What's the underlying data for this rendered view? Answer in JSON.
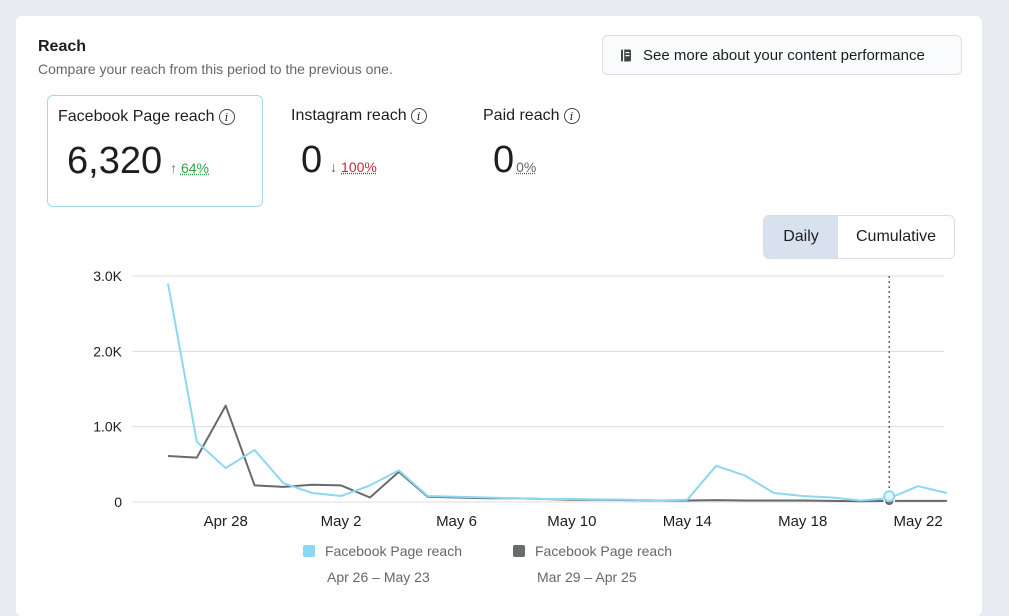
{
  "header": {
    "title": "Reach",
    "subtitle": "Compare your reach from this period to the previous one.",
    "more_button": "See more about your content performance",
    "more_icon": "notebook-icon"
  },
  "metrics": [
    {
      "label": "Facebook Page reach",
      "value": "6,320",
      "arrow": "↑",
      "delta": "64%",
      "direction": "up",
      "selected": true
    },
    {
      "label": "Instagram reach",
      "value": "0",
      "arrow": "↓",
      "delta": "100%",
      "direction": "down",
      "selected": false
    },
    {
      "label": "Paid reach",
      "value": "0",
      "arrow": "",
      "delta": "0%",
      "direction": "flat",
      "selected": false
    }
  ],
  "toggle": {
    "daily": "Daily",
    "cumulative": "Cumulative",
    "active": "Daily"
  },
  "legend": [
    {
      "name": "Facebook Page reach",
      "range": "Apr 26 – May 23",
      "color": "#8dd7f2"
    },
    {
      "name": "Facebook Page reach",
      "range": "Mar 29 – Apr 25",
      "color": "#676b6c"
    }
  ],
  "chart_data": {
    "type": "line",
    "y_ticks": [
      "0",
      "1.0K",
      "2.0K",
      "3.0K"
    ],
    "ylim": [
      0,
      3000
    ],
    "x_tick_labels": [
      "Apr 28",
      "May 2",
      "May 6",
      "May 10",
      "May 14",
      "May 18",
      "May 22"
    ],
    "x_tick_indices": [
      2,
      6,
      10,
      14,
      18,
      22,
      26
    ],
    "x": [
      "Apr 26",
      "Apr 27",
      "Apr 28",
      "Apr 29",
      "Apr 30",
      "May 1",
      "May 2",
      "May 3",
      "May 4",
      "May 5",
      "May 6",
      "May 7",
      "May 8",
      "May 9",
      "May 10",
      "May 11",
      "May 12",
      "May 13",
      "May 14",
      "May 15",
      "May 16",
      "May 17",
      "May 18",
      "May 19",
      "May 20",
      "May 21",
      "May 22",
      "May 23"
    ],
    "grid": true,
    "hover_index": 25,
    "series": [
      {
        "name": "Facebook Page reach",
        "color": "#8dd7f2",
        "values": [
          2900,
          800,
          450,
          690,
          250,
          120,
          80,
          220,
          420,
          80,
          70,
          60,
          50,
          40,
          40,
          35,
          30,
          20,
          30,
          480,
          350,
          120,
          80,
          60,
          20,
          50,
          210,
          120
        ]
      },
      {
        "name": "Facebook Page reach",
        "color": "#676b6c",
        "values": [
          610,
          590,
          1280,
          220,
          200,
          230,
          220,
          60,
          400,
          70,
          60,
          50,
          50,
          40,
          30,
          30,
          25,
          20,
          20,
          25,
          20,
          20,
          20,
          15,
          10,
          15,
          15,
          15
        ]
      }
    ]
  }
}
